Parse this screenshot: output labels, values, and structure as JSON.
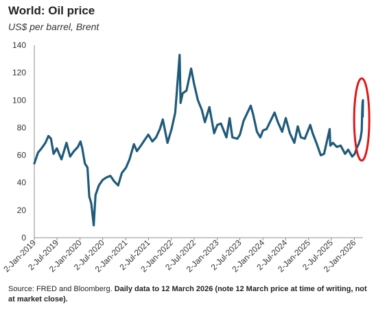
{
  "header": {
    "title": "World: Oil price",
    "subtitle": "US$ per barrel, Brent"
  },
  "footer": {
    "source_plain": "Source: FRED and Bloomberg. ",
    "source_bold": "Daily data to 12 March 2026 (note 12 March price at time of writing, not at market close)."
  },
  "chart_data": {
    "type": "line",
    "title": "World: Oil price",
    "subtitle": "US$ per barrel, Brent",
    "xlabel": "",
    "ylabel": "",
    "ylim": [
      0,
      140
    ],
    "yticks": [
      0,
      20,
      40,
      60,
      80,
      100,
      120,
      140
    ],
    "xlim": [
      "2019-01-02",
      "2026-03-12"
    ],
    "xticks": [
      "2-Jan-2019",
      "2-Jul-2019",
      "2-Jan-2020",
      "2-Jul-2020",
      "2-Jan-2021",
      "2-Jul-2021",
      "2-Jan-2022",
      "2-Jul-2022",
      "2-Jan-2023",
      "2-Jul-2023",
      "2-Jan-2024",
      "2-Jul-2024",
      "2-Jan-2025",
      "2-Jul-2025",
      "2-Jan-2026"
    ],
    "grid": false,
    "legend": "none",
    "line_color": "#1f5a7a",
    "highlight_color": "#e0181b",
    "annotation": "red ellipse highlighting the March 2026 price spike",
    "series": [
      {
        "points": [
          [
            "2019-01-02",
            54
          ],
          [
            "2019-02-01",
            62
          ],
          [
            "2019-03-01",
            65
          ],
          [
            "2019-04-01",
            69
          ],
          [
            "2019-04-25",
            74
          ],
          [
            "2019-05-15",
            72
          ],
          [
            "2019-06-05",
            61
          ],
          [
            "2019-07-01",
            65
          ],
          [
            "2019-08-07",
            57
          ],
          [
            "2019-09-16",
            69
          ],
          [
            "2019-10-15",
            59
          ],
          [
            "2019-11-15",
            63
          ],
          [
            "2019-12-16",
            66
          ],
          [
            "2020-01-06",
            70
          ],
          [
            "2020-01-20",
            65
          ],
          [
            "2020-02-10",
            54
          ],
          [
            "2020-03-02",
            51
          ],
          [
            "2020-03-16",
            30
          ],
          [
            "2020-04-01",
            25
          ],
          [
            "2020-04-21",
            9
          ],
          [
            "2020-05-05",
            31
          ],
          [
            "2020-06-01",
            38
          ],
          [
            "2020-07-01",
            42
          ],
          [
            "2020-08-03",
            44
          ],
          [
            "2020-09-01",
            45
          ],
          [
            "2020-10-01",
            41
          ],
          [
            "2020-11-02",
            38
          ],
          [
            "2020-12-01",
            47
          ],
          [
            "2021-01-04",
            51
          ],
          [
            "2021-02-01",
            57
          ],
          [
            "2021-03-08",
            68
          ],
          [
            "2021-04-01",
            63
          ],
          [
            "2021-05-03",
            67
          ],
          [
            "2021-06-01",
            71
          ],
          [
            "2021-07-01",
            75
          ],
          [
            "2021-08-02",
            70
          ],
          [
            "2021-09-01",
            73
          ],
          [
            "2021-10-01",
            79
          ],
          [
            "2021-10-25",
            86
          ],
          [
            "2021-12-01",
            69
          ],
          [
            "2022-01-03",
            79
          ],
          [
            "2022-02-01",
            91
          ],
          [
            "2022-03-08",
            133
          ],
          [
            "2022-03-16",
            98
          ],
          [
            "2022-04-01",
            105
          ],
          [
            "2022-05-02",
            107
          ],
          [
            "2022-06-08",
            123
          ],
          [
            "2022-07-01",
            112
          ],
          [
            "2022-08-01",
            100
          ],
          [
            "2022-09-01",
            93
          ],
          [
            "2022-09-26",
            84
          ],
          [
            "2022-11-01",
            95
          ],
          [
            "2022-12-09",
            76
          ],
          [
            "2023-01-03",
            82
          ],
          [
            "2023-02-01",
            83
          ],
          [
            "2023-03-17",
            73
          ],
          [
            "2023-04-12",
            87
          ],
          [
            "2023-05-04",
            73
          ],
          [
            "2023-06-12",
            72
          ],
          [
            "2023-07-03",
            75
          ],
          [
            "2023-08-01",
            85
          ],
          [
            "2023-09-27",
            96
          ],
          [
            "2023-10-16",
            90
          ],
          [
            "2023-11-16",
            77
          ],
          [
            "2023-12-13",
            73
          ],
          [
            "2024-01-03",
            78
          ],
          [
            "2024-02-01",
            79
          ],
          [
            "2024-04-05",
            91
          ],
          [
            "2024-05-01",
            84
          ],
          [
            "2024-06-04",
            77
          ],
          [
            "2024-07-03",
            87
          ],
          [
            "2024-08-05",
            76
          ],
          [
            "2024-09-10",
            69
          ],
          [
            "2024-10-07",
            81
          ],
          [
            "2024-11-01",
            73
          ],
          [
            "2024-12-02",
            72
          ],
          [
            "2025-01-15",
            82
          ],
          [
            "2025-02-03",
            76
          ],
          [
            "2025-03-05",
            69
          ],
          [
            "2025-04-09",
            60
          ],
          [
            "2025-05-05",
            61
          ],
          [
            "2025-06-19",
            79
          ],
          [
            "2025-06-24",
            67
          ],
          [
            "2025-07-15",
            69
          ],
          [
            "2025-08-15",
            66
          ],
          [
            "2025-09-15",
            67
          ],
          [
            "2025-10-20",
            61
          ],
          [
            "2025-11-14",
            64
          ],
          [
            "2025-12-16",
            59
          ],
          [
            "2026-01-05",
            61
          ],
          [
            "2026-01-20",
            65
          ],
          [
            "2026-02-05",
            68
          ],
          [
            "2026-02-20",
            72
          ],
          [
            "2026-03-02",
            78
          ],
          [
            "2026-03-06",
            92
          ],
          [
            "2026-03-09",
            99
          ],
          [
            "2026-03-10",
            88
          ],
          [
            "2026-03-12",
            100
          ]
        ]
      }
    ]
  }
}
